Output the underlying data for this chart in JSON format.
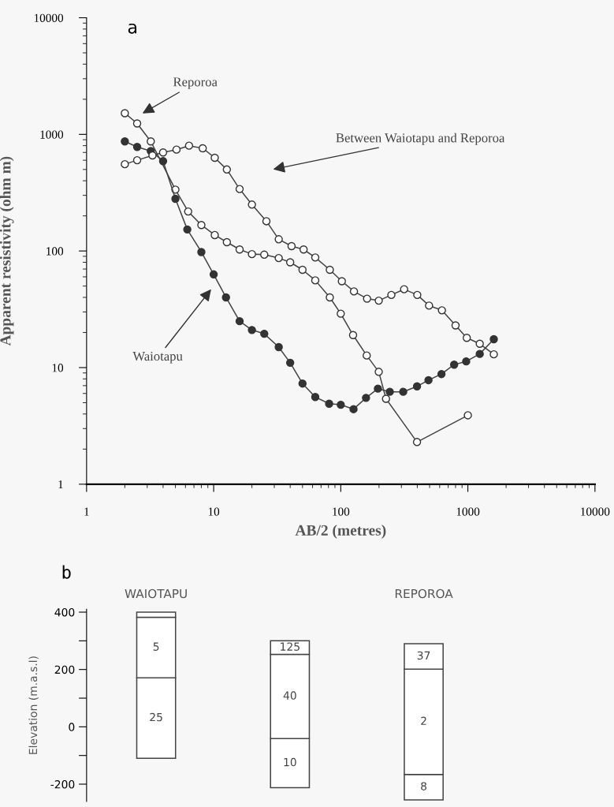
{
  "chart_data": [
    {
      "type": "line",
      "title": "a",
      "xlabel": "AB/2 (metres)",
      "ylabel": "Apparent resistivity (ohm m)",
      "log": "xy",
      "xlim": [
        1,
        10000
      ],
      "ylim": [
        1,
        10000
      ],
      "xticks": [
        1,
        10,
        100,
        1000,
        10000
      ],
      "yticks": [
        1,
        10,
        100,
        1000,
        10000
      ],
      "grid": false,
      "legend": false,
      "marker": "circle",
      "line_style": "solid",
      "annotations": [
        "Reporoa",
        "Between Waiotapu and Reporoa",
        "Waiotapu"
      ],
      "series": [
        {
          "color": "#ffffff",
          "x": [
            2,
            2.5,
            3.2,
            5,
            6.3,
            8,
            10.2,
            12.7,
            16,
            20,
            25,
            32.5,
            40,
            50,
            63,
            82,
            100,
            125,
            160,
            199,
            227,
            398,
            1000
          ],
          "values": [
            1520,
            1240,
            870,
            336,
            218,
            167,
            137,
            119,
            103,
            94,
            93,
            87,
            80,
            69,
            56,
            40,
            29,
            19,
            12.7,
            9.2,
            5.4,
            2.3,
            3.9
          ]
        },
        {
          "color": "#333333",
          "x": [
            2,
            2.5,
            3.2,
            4,
            5,
            6.2,
            8,
            10,
            12.5,
            16,
            20,
            25,
            32.5,
            40,
            50,
            63,
            81,
            100,
            126,
            158,
            196,
            243,
            310,
            398,
            490,
            620,
            780,
            970,
            1240,
            1600
          ],
          "values": [
            870,
            780,
            720,
            590,
            280,
            153,
            98,
            63,
            40,
            25,
            21,
            19.5,
            15,
            11,
            7.3,
            5.6,
            4.9,
            4.8,
            4.4,
            5.5,
            6.6,
            6.2,
            6.2,
            6.9,
            7.8,
            8.8,
            10.6,
            11.3,
            13.1,
            17.5
          ]
        },
        {
          "color": "#ffffff",
          "x": [
            2,
            2.5,
            3.3,
            4,
            5.1,
            6.4,
            8.2,
            10.2,
            12.7,
            16,
            20,
            26,
            32.5,
            41,
            51,
            63,
            82,
            102,
            127,
            161,
            199,
            250,
            315,
            400,
            495,
            625,
            800,
            980,
            1240,
            1600
          ],
          "values": [
            555,
            600,
            660,
            700,
            740,
            800,
            760,
            630,
            500,
            340,
            250,
            180,
            126,
            110,
            103,
            88,
            69,
            55,
            45,
            39,
            37.5,
            42,
            47,
            42,
            34,
            31,
            23,
            18,
            16,
            13
          ]
        }
      ]
    },
    {
      "type": "bar",
      "title": "b",
      "ylabel": "Elevation (m.a.s.l)",
      "categories": [
        "WAIOTAPU",
        null,
        "REPOROA"
      ],
      "annotations": [
        "25",
        "10",
        "8",
        "5",
        "40",
        "2",
        "125",
        "37"
      ],
      "ylim": [
        -260,
        410
      ],
      "yticks": [
        {
          "value": 400,
          "label": "400"
        },
        {
          "value": 300,
          "label": null
        },
        {
          "value": 200,
          "label": "200"
        },
        {
          "value": 100,
          "label": null
        },
        {
          "value": 0,
          "label": "0"
        },
        {
          "value": -100,
          "label": null
        },
        {
          "value": -200,
          "label": "-200"
        }
      ],
      "grid": false,
      "legend": false,
      "series": [
        {
          "color": "#ffffff",
          "base": [
            -110,
            -212,
            -255
          ],
          "values": [
            281,
            171,
            89
          ]
        },
        {
          "color": "#ffffff",
          "base": [
            171,
            -41,
            -166
          ],
          "values": [
            211,
            294,
            367
          ]
        },
        {
          "color": "#ffffff",
          "base": [
            382,
            253,
            201
          ],
          "values": [
            18,
            47,
            89
          ]
        }
      ]
    }
  ]
}
